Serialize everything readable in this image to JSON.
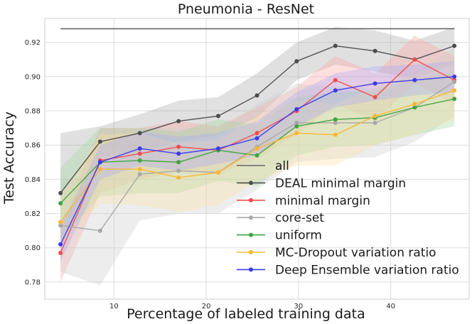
{
  "chart_data": {
    "type": "line",
    "title": "Pneumonia - ResNet",
    "xlabel": "Percentage of labeled training data",
    "ylabel": "Test Accuracy",
    "xlim": [
      2.5,
      48.5
    ],
    "ylim": [
      0.77,
      0.934
    ],
    "xticks": [
      10,
      20,
      30,
      40
    ],
    "yticks": [
      0.78,
      0.8,
      0.82,
      0.84,
      0.86,
      0.88,
      0.9,
      0.92
    ],
    "ytick_labels": [
      "0.78",
      "0.80",
      "0.82",
      "0.84",
      "0.86",
      "0.88",
      "0.90",
      "0.92"
    ],
    "grid": true,
    "legend_position": "lower-right",
    "x": [
      4.2,
      8.5,
      12.8,
      17.0,
      21.3,
      25.5,
      29.8,
      34.0,
      38.3,
      42.6,
      46.9
    ],
    "reference_line": {
      "name": "all",
      "value": 0.928,
      "color": "#666666"
    },
    "series": [
      {
        "name": "DEAL minimal margin",
        "color": "#4d4d4d",
        "band_color": "#a6a6a6",
        "values": [
          0.832,
          0.862,
          0.867,
          0.874,
          0.877,
          0.889,
          0.909,
          0.918,
          0.915,
          0.91,
          0.918
        ],
        "lower": [
          0.797,
          0.853,
          0.856,
          0.862,
          0.866,
          0.876,
          0.898,
          0.907,
          0.903,
          0.899,
          0.907
        ],
        "upper": [
          0.867,
          0.871,
          0.878,
          0.886,
          0.888,
          0.902,
          0.92,
          0.929,
          0.927,
          0.921,
          0.929
        ]
      },
      {
        "name": "minimal margin",
        "color": "#f24b4b",
        "band_color": "#ffa0a0",
        "values": [
          0.797,
          0.851,
          0.855,
          0.859,
          0.857,
          0.867,
          0.88,
          0.898,
          0.888,
          0.91,
          0.898
        ],
        "lower": [
          0.78,
          0.832,
          0.84,
          0.844,
          0.843,
          0.852,
          0.866,
          0.884,
          0.874,
          0.896,
          0.884
        ],
        "upper": [
          0.814,
          0.87,
          0.87,
          0.874,
          0.871,
          0.882,
          0.894,
          0.912,
          0.902,
          0.924,
          0.912
        ]
      },
      {
        "name": "core-set",
        "color": "#a8a8a8",
        "band_color": "#cccccc",
        "values": [
          0.813,
          0.81,
          0.843,
          0.845,
          0.844,
          0.859,
          0.873,
          0.873,
          0.873,
          0.882,
          0.897
        ],
        "lower": [
          0.786,
          0.778,
          0.816,
          0.82,
          0.82,
          0.834,
          0.85,
          0.852,
          0.853,
          0.862,
          0.877
        ],
        "upper": [
          0.84,
          0.842,
          0.87,
          0.87,
          0.868,
          0.884,
          0.896,
          0.894,
          0.893,
          0.902,
          0.917
        ]
      },
      {
        "name": "uniform",
        "color": "#3fa33f",
        "band_color": "#9fd69f",
        "values": [
          0.826,
          0.85,
          0.851,
          0.85,
          0.857,
          0.854,
          0.871,
          0.875,
          0.876,
          0.882,
          0.887
        ],
        "lower": [
          0.805,
          0.83,
          0.832,
          0.832,
          0.839,
          0.836,
          0.854,
          0.859,
          0.86,
          0.866,
          0.871
        ],
        "upper": [
          0.847,
          0.87,
          0.87,
          0.868,
          0.875,
          0.872,
          0.888,
          0.891,
          0.892,
          0.898,
          0.903
        ]
      },
      {
        "name": "MC-Dropout variation ratio",
        "color": "#f7b733",
        "band_color": "#fde2a6",
        "values": [
          0.815,
          0.846,
          0.846,
          0.841,
          0.844,
          0.858,
          0.867,
          0.866,
          0.877,
          0.884,
          0.892
        ],
        "lower": [
          0.8,
          0.826,
          0.825,
          0.821,
          0.825,
          0.839,
          0.848,
          0.848,
          0.86,
          0.866,
          0.875
        ],
        "upper": [
          0.83,
          0.866,
          0.867,
          0.861,
          0.863,
          0.877,
          0.886,
          0.884,
          0.894,
          0.902,
          0.909
        ]
      },
      {
        "name": "Deep Ensemble variation ratio",
        "color": "#3a3af0",
        "band_color": "#a9a9f7",
        "values": [
          0.802,
          0.85,
          0.858,
          0.855,
          0.858,
          0.864,
          0.881,
          0.892,
          0.896,
          0.898,
          0.9
        ],
        "lower": [
          0.792,
          0.84,
          0.848,
          0.845,
          0.849,
          0.854,
          0.871,
          0.882,
          0.886,
          0.889,
          0.891
        ],
        "upper": [
          0.812,
          0.86,
          0.868,
          0.865,
          0.867,
          0.874,
          0.891,
          0.902,
          0.906,
          0.907,
          0.909
        ]
      }
    ]
  }
}
